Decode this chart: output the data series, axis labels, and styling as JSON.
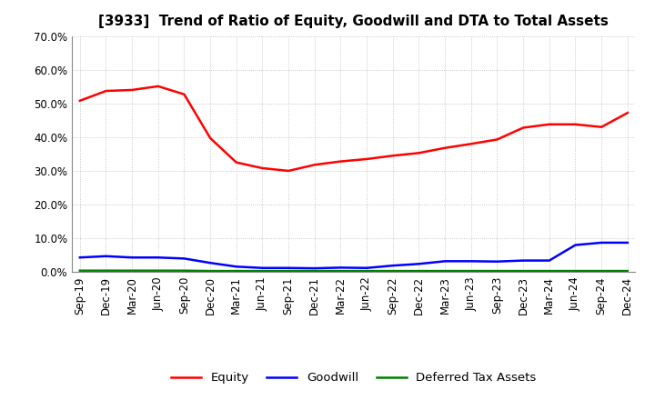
{
  "title": "[3933]  Trend of Ratio of Equity, Goodwill and DTA to Total Assets",
  "x_labels": [
    "Sep-19",
    "Dec-19",
    "Mar-20",
    "Jun-20",
    "Sep-20",
    "Dec-20",
    "Mar-21",
    "Jun-21",
    "Sep-21",
    "Dec-21",
    "Mar-22",
    "Jun-22",
    "Sep-22",
    "Dec-22",
    "Mar-23",
    "Jun-23",
    "Sep-23",
    "Dec-23",
    "Mar-24",
    "Jun-24",
    "Sep-24",
    "Dec-24"
  ],
  "equity": [
    0.508,
    0.537,
    0.54,
    0.551,
    0.527,
    0.397,
    0.325,
    0.308,
    0.3,
    0.318,
    0.328,
    0.335,
    0.345,
    0.353,
    0.368,
    0.38,
    0.393,
    0.428,
    0.438,
    0.438,
    0.43,
    0.472
  ],
  "goodwill": [
    0.043,
    0.047,
    0.043,
    0.043,
    0.04,
    0.027,
    0.016,
    0.012,
    0.012,
    0.011,
    0.013,
    0.012,
    0.019,
    0.024,
    0.032,
    0.032,
    0.031,
    0.034,
    0.034,
    0.08,
    0.087,
    0.087
  ],
  "dta": [
    0.004,
    0.004,
    0.004,
    0.004,
    0.004,
    0.003,
    0.003,
    0.003,
    0.003,
    0.003,
    0.003,
    0.003,
    0.003,
    0.003,
    0.003,
    0.003,
    0.003,
    0.003,
    0.003,
    0.003,
    0.003,
    0.003
  ],
  "equity_color": "#FF0000",
  "goodwill_color": "#0000FF",
  "dta_color": "#008000",
  "ylim": [
    0.0,
    0.7
  ],
  "yticks": [
    0.0,
    0.1,
    0.2,
    0.3,
    0.4,
    0.5,
    0.6,
    0.7
  ],
  "background_color": "#FFFFFF",
  "grid_color": "#BBBBBB",
  "title_fontsize": 11,
  "tick_fontsize": 8.5,
  "legend_labels": [
    "Equity",
    "Goodwill",
    "Deferred Tax Assets"
  ]
}
